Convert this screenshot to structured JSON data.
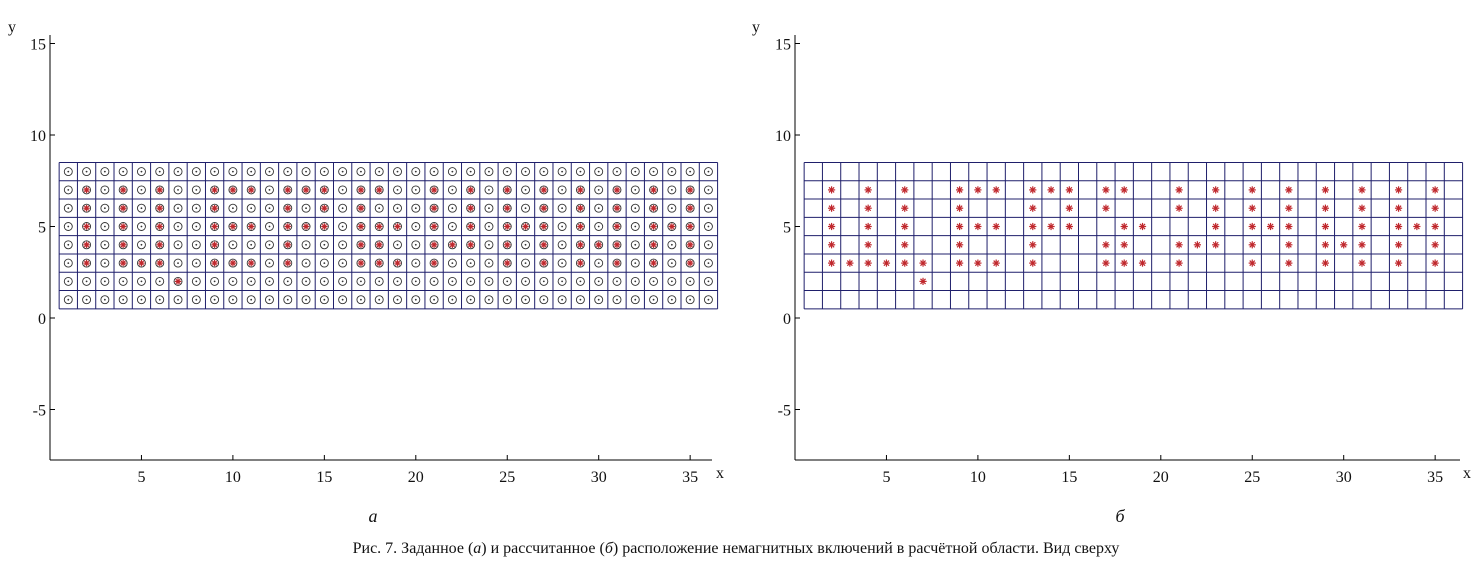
{
  "caption": {
    "prefix": "Рис. 7. Заданное (",
    "label_a": "а",
    "middle": ") и рассчитанное (",
    "label_b": "б",
    "suffix": ") расположение немагнитных включений в расчётной области. Вид сверху"
  },
  "colors": {
    "axis": "#000000",
    "grid": "#1f1f6b",
    "marker": "#c0282d",
    "empty_marker": "#333333"
  },
  "chart_data": [
    {
      "type": "scatter",
      "panel_label": "а",
      "xlabel": "x",
      "ylabel": "y",
      "xticks": [
        5,
        10,
        15,
        20,
        25,
        30,
        35
      ],
      "yticks": [
        -5,
        0,
        5,
        10,
        15
      ],
      "xlim": [
        0,
        36.9
      ],
      "ylim": [
        -7.5,
        15
      ],
      "grid": {
        "cols": [
          1,
          36
        ],
        "rows": [
          1,
          8
        ],
        "cell": 1
      },
      "marker": "circle-dot",
      "filled_marker": "circle-star",
      "filled_points": [
        [
          2,
          7
        ],
        [
          2,
          6
        ],
        [
          2,
          5
        ],
        [
          2,
          4
        ],
        [
          2,
          3
        ],
        [
          4,
          7
        ],
        [
          4,
          6
        ],
        [
          4,
          5
        ],
        [
          4,
          4
        ],
        [
          4,
          3
        ],
        [
          5,
          3
        ],
        [
          6,
          7
        ],
        [
          6,
          6
        ],
        [
          6,
          5
        ],
        [
          6,
          4
        ],
        [
          6,
          3
        ],
        [
          7,
          2
        ],
        [
          9,
          7
        ],
        [
          9,
          6
        ],
        [
          9,
          5
        ],
        [
          9,
          4
        ],
        [
          9,
          3
        ],
        [
          10,
          7
        ],
        [
          10,
          5
        ],
        [
          10,
          3
        ],
        [
          11,
          7
        ],
        [
          11,
          5
        ],
        [
          11,
          3
        ],
        [
          13,
          7
        ],
        [
          13,
          6
        ],
        [
          13,
          5
        ],
        [
          13,
          4
        ],
        [
          13,
          3
        ],
        [
          14,
          7
        ],
        [
          14,
          5
        ],
        [
          15,
          7
        ],
        [
          15,
          6
        ],
        [
          15,
          5
        ],
        [
          17,
          7
        ],
        [
          17,
          6
        ],
        [
          17,
          5
        ],
        [
          17,
          4
        ],
        [
          17,
          3
        ],
        [
          18,
          7
        ],
        [
          18,
          5
        ],
        [
          18,
          4
        ],
        [
          18,
          3
        ],
        [
          19,
          5
        ],
        [
          19,
          3
        ],
        [
          21,
          7
        ],
        [
          21,
          6
        ],
        [
          21,
          5
        ],
        [
          21,
          4
        ],
        [
          21,
          3
        ],
        [
          22,
          4
        ],
        [
          23,
          7
        ],
        [
          23,
          6
        ],
        [
          23,
          5
        ],
        [
          23,
          4
        ],
        [
          25,
          7
        ],
        [
          25,
          6
        ],
        [
          25,
          5
        ],
        [
          25,
          4
        ],
        [
          25,
          3
        ],
        [
          26,
          5
        ],
        [
          27,
          7
        ],
        [
          27,
          6
        ],
        [
          27,
          5
        ],
        [
          27,
          4
        ],
        [
          27,
          3
        ],
        [
          29,
          7
        ],
        [
          29,
          6
        ],
        [
          29,
          5
        ],
        [
          29,
          4
        ],
        [
          29,
          3
        ],
        [
          30,
          4
        ],
        [
          31,
          7
        ],
        [
          31,
          6
        ],
        [
          31,
          5
        ],
        [
          31,
          4
        ],
        [
          31,
          3
        ],
        [
          33,
          7
        ],
        [
          33,
          6
        ],
        [
          33,
          5
        ],
        [
          33,
          4
        ],
        [
          33,
          3
        ],
        [
          34,
          5
        ],
        [
          35,
          7
        ],
        [
          35,
          6
        ],
        [
          35,
          5
        ],
        [
          35,
          4
        ],
        [
          35,
          3
        ]
      ]
    },
    {
      "type": "scatter",
      "panel_label": "б",
      "xlabel": "x",
      "ylabel": "y",
      "xticks": [
        5,
        10,
        15,
        20,
        25,
        30,
        35
      ],
      "yticks": [
        -5,
        0,
        5,
        10,
        15
      ],
      "xlim": [
        0,
        36.9
      ],
      "ylim": [
        -7.5,
        15
      ],
      "grid": {
        "cols": [
          1,
          36
        ],
        "rows": [
          1,
          8
        ],
        "cell": 1
      },
      "marker": "star",
      "points": [
        [
          2,
          7
        ],
        [
          2,
          6
        ],
        [
          2,
          5
        ],
        [
          2,
          4
        ],
        [
          2,
          3
        ],
        [
          3,
          3
        ],
        [
          4,
          7
        ],
        [
          4,
          6
        ],
        [
          4,
          5
        ],
        [
          4,
          4
        ],
        [
          4,
          3
        ],
        [
          5,
          3
        ],
        [
          6,
          7
        ],
        [
          6,
          6
        ],
        [
          6,
          5
        ],
        [
          6,
          4
        ],
        [
          6,
          3
        ],
        [
          7,
          3
        ],
        [
          7,
          2
        ],
        [
          9,
          7
        ],
        [
          9,
          6
        ],
        [
          9,
          5
        ],
        [
          9,
          4
        ],
        [
          9,
          3
        ],
        [
          10,
          7
        ],
        [
          10,
          5
        ],
        [
          10,
          3
        ],
        [
          11,
          7
        ],
        [
          11,
          5
        ],
        [
          11,
          3
        ],
        [
          13,
          7
        ],
        [
          13,
          6
        ],
        [
          13,
          5
        ],
        [
          13,
          4
        ],
        [
          13,
          3
        ],
        [
          14,
          7
        ],
        [
          14,
          5
        ],
        [
          15,
          7
        ],
        [
          15,
          6
        ],
        [
          15,
          5
        ],
        [
          17,
          7
        ],
        [
          17,
          6
        ],
        [
          17,
          4
        ],
        [
          17,
          3
        ],
        [
          18,
          7
        ],
        [
          18,
          5
        ],
        [
          18,
          4
        ],
        [
          18,
          3
        ],
        [
          19,
          5
        ],
        [
          19,
          3
        ],
        [
          21,
          7
        ],
        [
          21,
          6
        ],
        [
          21,
          4
        ],
        [
          21,
          3
        ],
        [
          22,
          4
        ],
        [
          23,
          7
        ],
        [
          23,
          6
        ],
        [
          23,
          5
        ],
        [
          23,
          4
        ],
        [
          25,
          7
        ],
        [
          25,
          6
        ],
        [
          25,
          5
        ],
        [
          25,
          4
        ],
        [
          25,
          3
        ],
        [
          26,
          5
        ],
        [
          27,
          7
        ],
        [
          27,
          6
        ],
        [
          27,
          5
        ],
        [
          27,
          4
        ],
        [
          27,
          3
        ],
        [
          29,
          7
        ],
        [
          29,
          6
        ],
        [
          29,
          5
        ],
        [
          29,
          4
        ],
        [
          29,
          3
        ],
        [
          30,
          4
        ],
        [
          31,
          7
        ],
        [
          31,
          6
        ],
        [
          31,
          5
        ],
        [
          31,
          4
        ],
        [
          31,
          3
        ],
        [
          33,
          7
        ],
        [
          33,
          6
        ],
        [
          33,
          5
        ],
        [
          33,
          4
        ],
        [
          33,
          3
        ],
        [
          34,
          5
        ],
        [
          35,
          7
        ],
        [
          35,
          6
        ],
        [
          35,
          5
        ],
        [
          35,
          4
        ],
        [
          35,
          3
        ]
      ]
    }
  ]
}
